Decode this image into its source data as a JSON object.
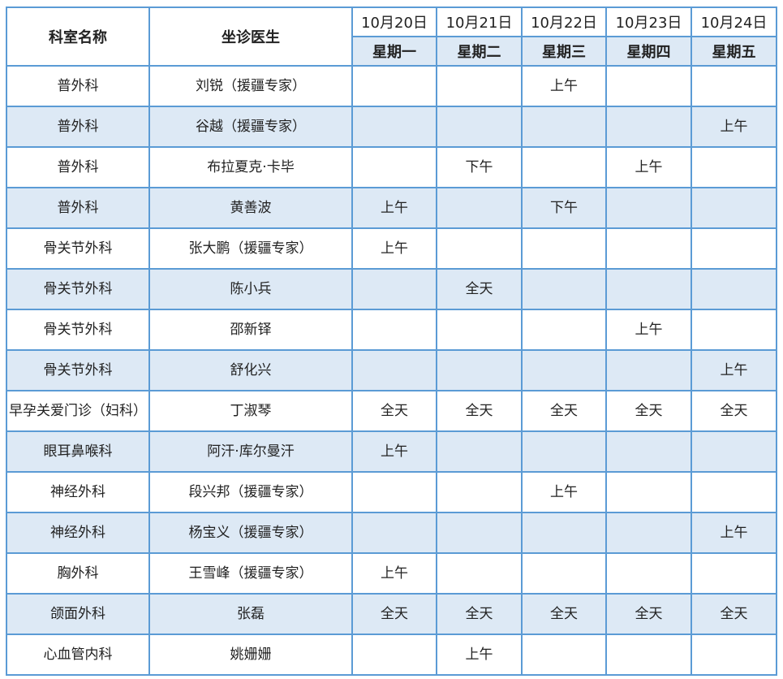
{
  "header": {
    "dept": "科室名称",
    "doctor": "坐诊医生",
    "dates": [
      "10月20日",
      "10月21日",
      "10月22日",
      "10月23日",
      "10月24日"
    ],
    "weekdays": [
      "星期一",
      "星期二",
      "星期三",
      "星期四",
      "星期五"
    ]
  },
  "colors": {
    "border": "#5b9bd5",
    "shade": "#dde9f5"
  },
  "rows": [
    {
      "dept": "普外科",
      "doctor": "刘锐（援疆专家）",
      "s": [
        "",
        "",
        "上午",
        "",
        ""
      ]
    },
    {
      "dept": "普外科",
      "doctor": "谷越（援疆专家）",
      "s": [
        "",
        "",
        "",
        "",
        "上午"
      ]
    },
    {
      "dept": "普外科",
      "doctor": "布拉夏克·卡毕",
      "s": [
        "",
        "下午",
        "",
        "上午",
        ""
      ]
    },
    {
      "dept": "普外科",
      "doctor": "黄善波",
      "s": [
        "上午",
        "",
        "下午",
        "",
        ""
      ]
    },
    {
      "dept": "骨关节外科",
      "doctor": "张大鹏（援疆专家）",
      "s": [
        "上午",
        "",
        "",
        "",
        ""
      ]
    },
    {
      "dept": "骨关节外科",
      "doctor": "陈小兵",
      "s": [
        "",
        "全天",
        "",
        "",
        ""
      ]
    },
    {
      "dept": "骨关节外科",
      "doctor": "邵新铎",
      "s": [
        "",
        "",
        "",
        "上午",
        ""
      ]
    },
    {
      "dept": "骨关节外科",
      "doctor": "舒化兴",
      "s": [
        "",
        "",
        "",
        "",
        "上午"
      ]
    },
    {
      "dept": "早孕关爱门诊（妇科）",
      "doctor": "丁淑琴",
      "s": [
        "全天",
        "全天",
        "全天",
        "全天",
        "全天"
      ]
    },
    {
      "dept": "眼耳鼻喉科",
      "doctor": "阿汗·库尔曼汗",
      "s": [
        "上午",
        "",
        "",
        "",
        ""
      ]
    },
    {
      "dept": "神经外科",
      "doctor": "段兴邦（援疆专家）",
      "s": [
        "",
        "",
        "上午",
        "",
        ""
      ]
    },
    {
      "dept": "神经外科",
      "doctor": "杨宝义（援疆专家）",
      "s": [
        "",
        "",
        "",
        "",
        "上午"
      ]
    },
    {
      "dept": "胸外科",
      "doctor": "王雪峰（援疆专家）",
      "s": [
        "上午",
        "",
        "",
        "",
        ""
      ]
    },
    {
      "dept": "颌面外科",
      "doctor": "张磊",
      "s": [
        "全天",
        "全天",
        "全天",
        "全天",
        "全天"
      ]
    },
    {
      "dept": "心血管内科",
      "doctor": "姚姗姗",
      "s": [
        "",
        "上午",
        "",
        "",
        ""
      ]
    }
  ]
}
